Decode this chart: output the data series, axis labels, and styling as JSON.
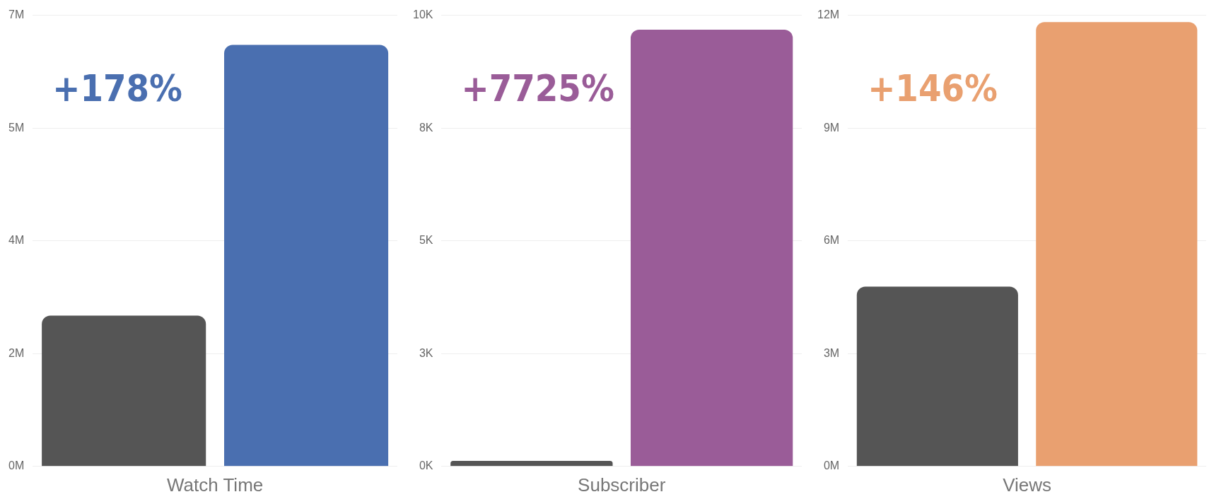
{
  "chart_data": [
    {
      "type": "bar",
      "xlabel": "Watch Time",
      "categories": [
        null,
        null
      ],
      "values": [
        2340000,
        6540000
      ],
      "colors": [
        "#555555",
        "#4a6fb0"
      ],
      "ylim": [
        0,
        7000000
      ],
      "yticks": [
        {
          "value": 0,
          "label": "0M"
        },
        {
          "value": 1750000,
          "label": "2M"
        },
        {
          "value": 3500000,
          "label": "4M"
        },
        {
          "value": 5250000,
          "label": "5M"
        },
        {
          "value": 7000000,
          "label": "7M"
        }
      ],
      "grid": "y",
      "annotations": [
        "+178%"
      ]
    },
    {
      "type": "bar",
      "xlabel": "Subscriber",
      "categories": [
        null,
        null
      ],
      "values": [
        124,
        9680
      ],
      "colors": [
        "#555555",
        "#9a5c98"
      ],
      "ylim": [
        0,
        10000
      ],
      "yticks": [
        {
          "value": 0,
          "label": "0K"
        },
        {
          "value": 2500,
          "label": "3K"
        },
        {
          "value": 5000,
          "label": "5K"
        },
        {
          "value": 7500,
          "label": "8K"
        },
        {
          "value": 10000,
          "label": "10K"
        }
      ],
      "grid": "y",
      "annotations": [
        "+7725%"
      ]
    },
    {
      "type": "bar",
      "xlabel": "Views",
      "categories": [
        null,
        null
      ],
      "values": [
        4780000,
        11820000
      ],
      "colors": [
        "#555555",
        "#e9a070"
      ],
      "ylim": [
        0,
        12000000
      ],
      "yticks": [
        {
          "value": 0,
          "label": "0M"
        },
        {
          "value": 3000000,
          "label": "3M"
        },
        {
          "value": 6000000,
          "label": "6M"
        },
        {
          "value": 9000000,
          "label": "9M"
        },
        {
          "value": 12000000,
          "label": "12M"
        }
      ],
      "grid": "y",
      "annotations": [
        "+146%"
      ]
    }
  ]
}
